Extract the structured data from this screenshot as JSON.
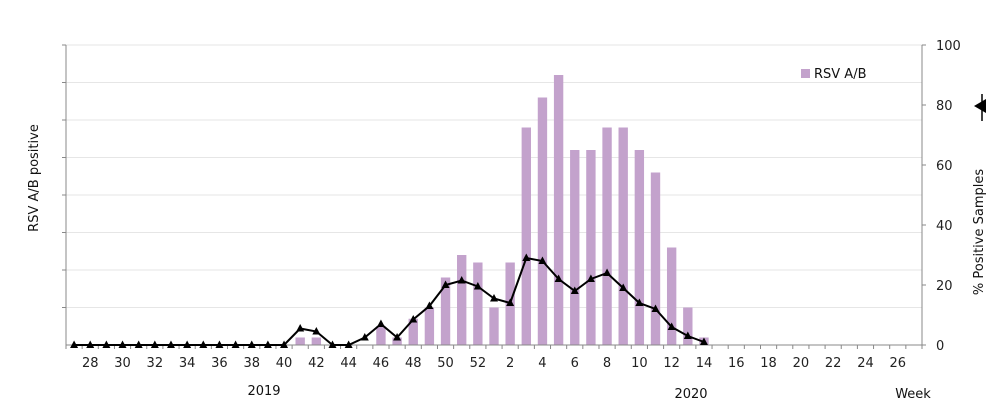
{
  "chart_data": {
    "type": "bar",
    "title": "",
    "ylabel_left": "RSV A/B positive",
    "ylabel_right": "% Positive Samples",
    "xlabel": "Week",
    "year_labels": [
      "2019",
      "2020"
    ],
    "y_right_ticks": [
      "0",
      "20",
      "40",
      "60",
      "80",
      "100"
    ],
    "y_right_lim": [
      0,
      100
    ],
    "y_left_lim": [
      0,
      8
    ],
    "grid": true,
    "legend_position": "top-right",
    "colors": {
      "bar": "#c3a2cc",
      "line": "#000000",
      "grid": "#e6e6e6",
      "axis": "#888888"
    },
    "weeks": [
      "27",
      "28",
      "29",
      "30",
      "31",
      "32",
      "33",
      "34",
      "35",
      "36",
      "37",
      "38",
      "39",
      "40",
      "41",
      "42",
      "43",
      "44",
      "45",
      "46",
      "47",
      "48",
      "49",
      "50",
      "51",
      "52",
      "1",
      "2",
      "3",
      "4",
      "5",
      "6",
      "7",
      "8",
      "9",
      "10",
      "11",
      "12",
      "13",
      "14",
      "15",
      "16",
      "17",
      "18",
      "19",
      "20",
      "21",
      "22",
      "23",
      "24",
      "25",
      "26",
      "27"
    ],
    "x_tick_labels": [
      "28",
      "30",
      "32",
      "34",
      "36",
      "38",
      "40",
      "42",
      "44",
      "46",
      "48",
      "50",
      "52",
      "2",
      "4",
      "6",
      "8",
      "10",
      "12",
      "14",
      "16",
      "18",
      "20",
      "22",
      "24",
      "26"
    ],
    "series": [
      {
        "name": "RSV A/B",
        "type": "bar",
        "values": [
          0,
          0,
          0,
          0,
          0,
          0,
          0,
          0,
          0,
          0,
          0,
          0,
          0,
          0,
          0.2,
          0.2,
          0,
          0,
          0,
          0.5,
          0.2,
          0.7,
          1.0,
          1.8,
          2.4,
          2.2,
          1.0,
          2.2,
          5.8,
          6.6,
          7.2,
          5.2,
          5.2,
          5.8,
          5.8,
          5.2,
          4.6,
          2.6,
          1.0,
          0.2,
          0,
          0,
          0,
          0,
          0,
          0,
          0,
          0,
          0,
          0,
          0,
          0,
          0
        ]
      },
      {
        "type": "line",
        "axis": "right",
        "marker": "triangle",
        "values": [
          0,
          0,
          0,
          0,
          0,
          0,
          0,
          0,
          0,
          0,
          0,
          0,
          0,
          0,
          5.5,
          4.5,
          0,
          0,
          2.5,
          7,
          2.5,
          8.5,
          13,
          20,
          21.5,
          19.5,
          15.5,
          14,
          29,
          28,
          22,
          18,
          22,
          24,
          19,
          14,
          12,
          6,
          3,
          1,
          null,
          null,
          null,
          null,
          null,
          null,
          null,
          null,
          null,
          null,
          null,
          null,
          null
        ]
      }
    ],
    "right_marker_label": ""
  }
}
